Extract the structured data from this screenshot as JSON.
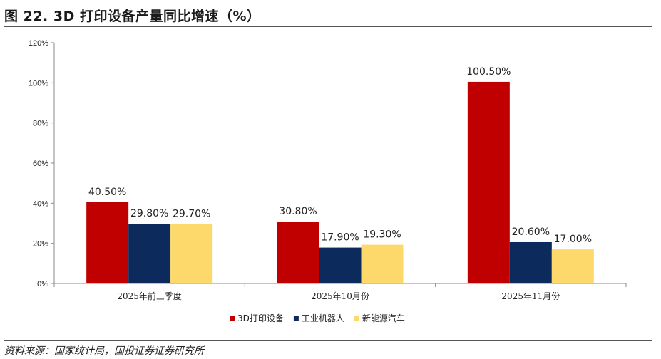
{
  "header": {
    "title": "图 22. 3D 打印设备产量同比增速（%）"
  },
  "footer": {
    "source": "资料来源：国家统计局，国投证券证券研究所"
  },
  "colors": {
    "series": [
      "#c00000",
      "#0d2a5c",
      "#fdd96b"
    ],
    "axis": "#888888"
  },
  "chart_data": {
    "type": "bar",
    "title": "3D 打印设备产量同比增速（%）",
    "xlabel": "",
    "ylabel": "",
    "ylim": [
      0,
      120
    ],
    "yticks": [
      0,
      20,
      40,
      60,
      80,
      100,
      120
    ],
    "ytick_labels": [
      "0%",
      "20%",
      "40%",
      "60%",
      "80%",
      "100%",
      "120%"
    ],
    "grid": false,
    "legend_position": "bottom",
    "categories": [
      "2025年前三季度",
      "2025年10月份",
      "2025年11月份"
    ],
    "series": [
      {
        "name": "3D打印设备",
        "values": [
          40.5,
          30.8,
          100.5
        ],
        "labels": [
          "40.50%",
          "30.80%",
          "100.50%"
        ]
      },
      {
        "name": "工业机器人",
        "values": [
          29.8,
          17.9,
          20.6
        ],
        "labels": [
          "29.80%",
          "17.90%",
          "20.60%"
        ]
      },
      {
        "name": "新能源汽车",
        "values": [
          29.7,
          19.3,
          17.0
        ],
        "labels": [
          "29.70%",
          "19.30%",
          "17.00%"
        ]
      }
    ]
  }
}
